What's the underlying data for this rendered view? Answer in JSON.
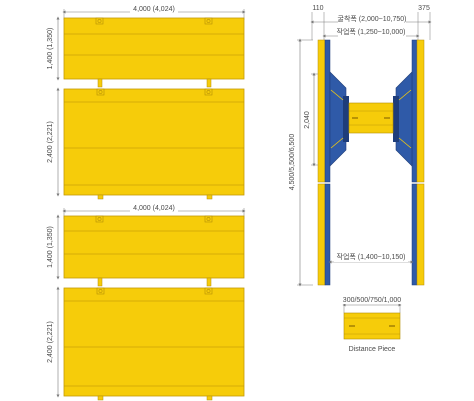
{
  "colors": {
    "panel": "#f6cc0a",
    "panel_edge": "#c49a06",
    "panel_line": "#b58e06",
    "blue": "#2f5aa8",
    "blue_dark": "#1e3d7a",
    "dim_line": "#7a7a7a"
  },
  "top_panel_set": {
    "width_label": "4,000 (4,024)",
    "upper_height_label": "1,400 (1,350)",
    "lower_height_label": "2,400 (2,221)"
  },
  "bottom_panel_set": {
    "width_label": "4,000 (4,024)",
    "upper_height_label": "1,400 (1,350)",
    "lower_height_label": "2,400 (2,221)"
  },
  "side_view": {
    "left_offset_label": "110",
    "right_offset_label": "375",
    "excavation_width_label": "굴착폭 (2,000~10,750)",
    "working_width_top_label": "작업폭 (1,250~10,000)",
    "strut_height_label": "2,040",
    "total_height_label": "4,500/5,500/6,500",
    "working_width_bottom_label": "작업폭 (1,400~10,150)"
  },
  "distance_piece": {
    "size_label": "300/500/750/1,000",
    "name_label": "Distance Piece"
  }
}
